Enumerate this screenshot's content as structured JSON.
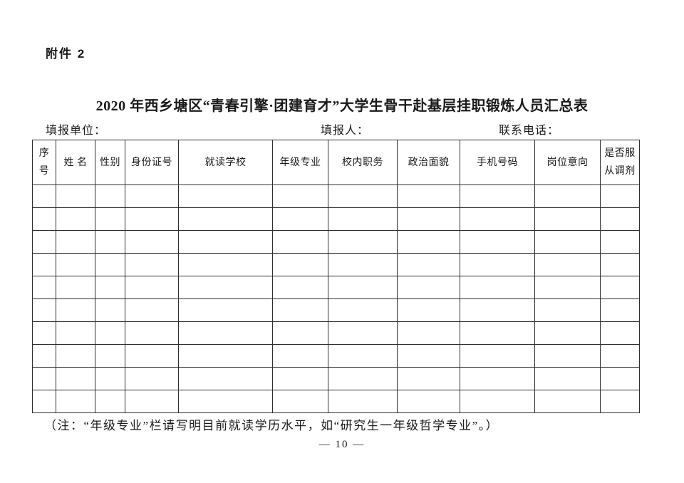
{
  "page": {
    "attachment_label": "附件 2",
    "title": "2020 年西乡塘区“青春引擎·团建育才”大学生骨干赴基层挂职锻炼人员汇总表",
    "note": "（注：“年级专业”栏请写明目前就读学历水平，如“研究生一年级哲学专业”。）",
    "page_number": "— 10 —"
  },
  "info_line": {
    "unit_label": "填报单位：",
    "reporter_label": "填报人：",
    "phone_label": "联系电话："
  },
  "table": {
    "columns": [
      "序\n号",
      "姓 名",
      "性别",
      "身份证号",
      "就读学校",
      "年级专业",
      "校内职务",
      "政治面貌",
      "手机号码",
      "岗位意向",
      "是否服\n从调剂"
    ],
    "empty_row_count": 10
  },
  "colors": {
    "text": "#1a1a1a",
    "border": "#2e2e2e",
    "background": "#ffffff"
  }
}
